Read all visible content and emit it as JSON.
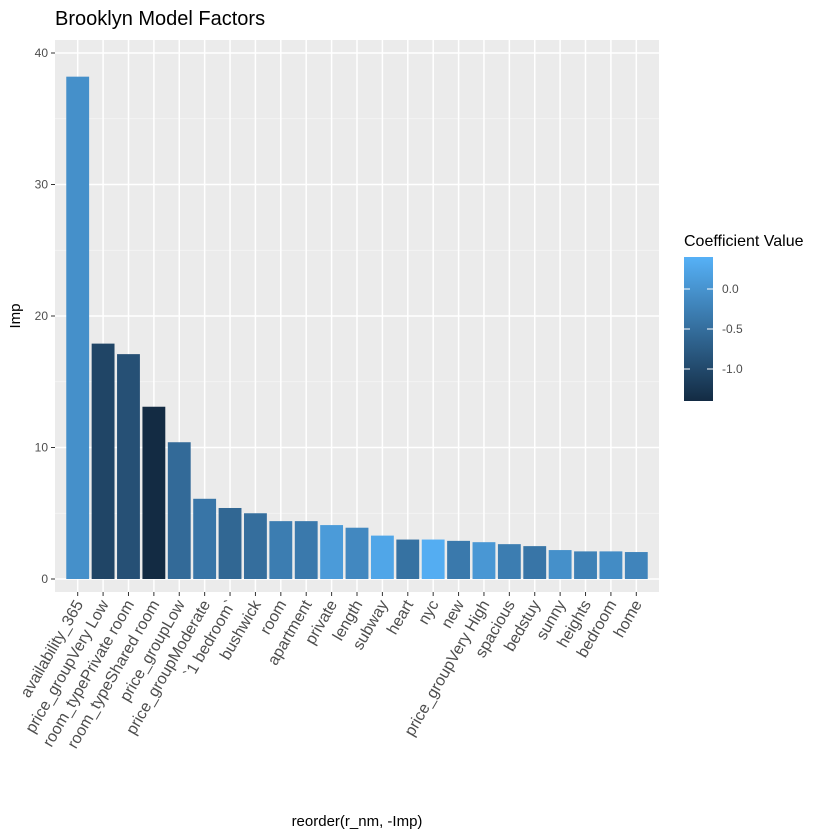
{
  "chart_data": {
    "type": "bar",
    "title": "Brooklyn Model Factors",
    "xlabel": "reorder(r_nm, -Imp)",
    "ylabel": "Imp",
    "ylim": [
      0,
      40
    ],
    "yticks": [
      0,
      10,
      20,
      30,
      40
    ],
    "grid": true,
    "legend": {
      "title": "Coefficient Value",
      "placement": "right",
      "ticks": [
        0.0,
        -0.5,
        -1.0
      ],
      "tick_labels": [
        "0.0",
        "-0.5",
        "-1.0"
      ],
      "range": [
        -1.4,
        0.4
      ],
      "color_low": "#132B43",
      "color_high": "#56B1F7"
    },
    "categories": [
      "availability_365",
      "price_groupVery Low",
      "room_typePrivate room",
      "room_typeShared room",
      "price_groupLow",
      "price_groupModerate",
      "`1 bedroom`",
      "bushwick",
      "room",
      "apartment",
      "private",
      "length",
      "subway",
      "heart",
      "nyc",
      "new",
      "price_groupVery High",
      "spacious",
      "bedstuy",
      "sunny",
      "heights",
      "bedroom",
      "home"
    ],
    "values": [
      38.2,
      17.9,
      17.1,
      13.1,
      10.4,
      6.1,
      5.4,
      5.0,
      4.4,
      4.4,
      4.1,
      3.9,
      3.3,
      3.0,
      3.0,
      2.9,
      2.8,
      2.65,
      2.5,
      2.2,
      2.1,
      2.1,
      2.05
    ],
    "coefficients": [
      -0.05,
      -1.05,
      -0.9,
      -1.4,
      -0.55,
      -0.4,
      -0.6,
      -0.5,
      -0.3,
      -0.35,
      0.1,
      -0.15,
      0.25,
      -0.45,
      0.35,
      -0.35,
      0.05,
      -0.3,
      -0.4,
      -0.05,
      -0.25,
      -0.1,
      -0.2
    ]
  }
}
